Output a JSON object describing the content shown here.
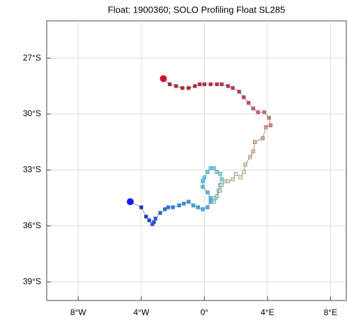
{
  "chart_data": {
    "type": "trajectory",
    "title": "Float: 1900360; SOLO Profiling Float SL285",
    "x": [
      -4.7,
      -4.0,
      -3.7,
      -3.5,
      -3.3,
      -3.2,
      -3.1,
      -2.8,
      -2.5,
      -2.3,
      -2.0,
      -1.6,
      -1.3,
      -1.0,
      -0.7,
      -0.4,
      -0.1,
      0.2,
      0.4,
      0.4,
      0.2,
      -0.1,
      -0.1,
      0.0,
      0.2,
      0.4,
      0.6,
      0.8,
      1.0,
      1.1,
      1.0,
      0.9,
      0.7,
      0.6,
      0.8,
      1.0,
      1.1,
      1.3,
      1.5,
      1.8,
      2.0,
      2.3,
      2.5,
      2.6,
      2.9,
      3.1,
      3.2,
      3.7,
      3.9,
      4.2,
      4.1,
      3.8,
      3.4,
      3.1,
      2.8,
      2.5,
      2.2,
      1.8,
      1.5,
      1.1,
      0.8,
      0.4,
      0.0,
      -0.3,
      -0.6,
      -1.0,
      -1.4,
      -1.8,
      -2.2,
      -2.6
    ],
    "y": [
      -34.7,
      -35.0,
      -35.5,
      -35.7,
      -35.9,
      -35.8,
      -35.6,
      -35.3,
      -35.1,
      -35.0,
      -35.0,
      -34.9,
      -34.8,
      -34.7,
      -34.9,
      -35.0,
      -35.1,
      -35.0,
      -34.7,
      -34.5,
      -34.2,
      -33.9,
      -33.6,
      -33.4,
      -33.1,
      -32.9,
      -32.9,
      -33.1,
      -33.2,
      -33.5,
      -33.8,
      -34.1,
      -34.5,
      -34.7,
      -34.4,
      -34.1,
      -33.8,
      -33.6,
      -33.6,
      -33.5,
      -33.2,
      -33.4,
      -33.1,
      -32.7,
      -32.3,
      -32.0,
      -31.5,
      -31.3,
      -30.7,
      -30.6,
      -30.2,
      -29.9,
      -29.9,
      -29.7,
      -29.4,
      -29.1,
      -28.8,
      -28.6,
      -28.5,
      -28.4,
      -28.4,
      -28.4,
      -28.4,
      -28.4,
      -28.5,
      -28.6,
      -28.6,
      -28.5,
      -28.4,
      -28.1
    ],
    "colormap": [
      "#1a1aee",
      "#22aaff",
      "#66ddff",
      "#eeeeaa",
      "#cc3355",
      "#cc1133"
    ],
    "line_color": "#999999",
    "xlim": [
      -10,
      9
    ],
    "ylim": [
      -40,
      -25
    ],
    "xticks": [
      {
        "value": -8,
        "label": "8°W"
      },
      {
        "value": -4,
        "label": "4°W"
      },
      {
        "value": 0,
        "label": "0°"
      },
      {
        "value": 4,
        "label": "4°E"
      },
      {
        "value": 8,
        "label": "8°E"
      }
    ],
    "yticks": [
      {
        "value": -27,
        "label": "27°S"
      },
      {
        "value": -30,
        "label": "30°S"
      },
      {
        "value": -33,
        "label": "33°S"
      },
      {
        "value": -36,
        "label": "36°S"
      },
      {
        "value": -39,
        "label": "39°S"
      }
    ],
    "grid": true
  }
}
